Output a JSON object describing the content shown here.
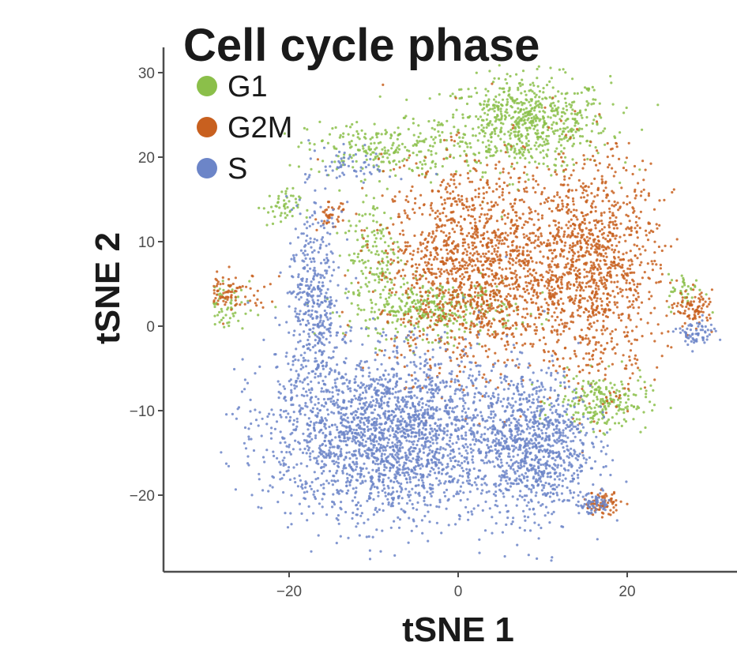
{
  "chart_data": {
    "type": "scatter",
    "title": "Cell cycle phase",
    "xlabel": "tSNE 1",
    "ylabel": "tSNE 2",
    "xlim": [
      -35,
      33
    ],
    "ylim": [
      -29,
      33
    ],
    "xticks": [
      -20,
      0,
      20
    ],
    "yticks": [
      30,
      20,
      10,
      0,
      -10,
      -20
    ],
    "xtick_labels": [
      "−20",
      "0",
      "20"
    ],
    "ytick_labels": [
      "30",
      "20",
      "10",
      "0",
      "−10",
      "−20"
    ],
    "grid": false,
    "legend": "top-left",
    "series": [
      {
        "name": "G1",
        "color": "#8bbf4a",
        "clusters": [
          {
            "cx": 8,
            "cy": 24,
            "rx": 9,
            "ry": 5,
            "n": 700
          },
          {
            "cx": -9,
            "cy": 21,
            "rx": 8,
            "ry": 3,
            "n": 220
          },
          {
            "cx": -3,
            "cy": 2,
            "rx": 9,
            "ry": 3,
            "n": 350
          },
          {
            "cx": 17,
            "cy": -9,
            "rx": 5,
            "ry": 3,
            "n": 220
          },
          {
            "cx": -21,
            "cy": 14,
            "rx": 2,
            "ry": 2,
            "n": 50
          },
          {
            "cx": -28,
            "cy": 2,
            "rx": 3,
            "ry": 3,
            "n": 70
          },
          {
            "cx": -10,
            "cy": 9,
            "rx": 3,
            "ry": 7,
            "n": 150
          },
          {
            "cx": 27,
            "cy": 4,
            "rx": 2,
            "ry": 2,
            "n": 40
          }
        ]
      },
      {
        "name": "G2M",
        "color": "#c8601f",
        "clusters": [
          {
            "cx": 2,
            "cy": 7,
            "rx": 10,
            "ry": 11,
            "n": 1500
          },
          {
            "cx": 16,
            "cy": 7,
            "rx": 7,
            "ry": 12,
            "n": 1100
          },
          {
            "cx": -28,
            "cy": 4,
            "rx": 5,
            "ry": 2,
            "n": 130
          },
          {
            "cx": 28,
            "cy": 2,
            "rx": 2,
            "ry": 2,
            "n": 90
          },
          {
            "cx": 17,
            "cy": -21,
            "rx": 2,
            "ry": 1.2,
            "n": 80
          },
          {
            "cx": -15,
            "cy": 13,
            "rx": 1.5,
            "ry": 1.5,
            "n": 40
          }
        ]
      },
      {
        "name": "S",
        "color": "#6c85c8",
        "clusters": [
          {
            "cx": -8,
            "cy": -13,
            "rx": 13,
            "ry": 9,
            "n": 2300
          },
          {
            "cx": 9,
            "cy": -14,
            "rx": 6,
            "ry": 8,
            "n": 900
          },
          {
            "cx": -17,
            "cy": 2,
            "rx": 3,
            "ry": 11,
            "n": 450
          },
          {
            "cx": 28,
            "cy": -1,
            "rx": 2,
            "ry": 1.5,
            "n": 70
          },
          {
            "cx": 16,
            "cy": -21,
            "rx": 2,
            "ry": 1.2,
            "n": 60
          },
          {
            "cx": -12,
            "cy": 19,
            "rx": 4,
            "ry": 2,
            "n": 60
          }
        ]
      }
    ]
  }
}
